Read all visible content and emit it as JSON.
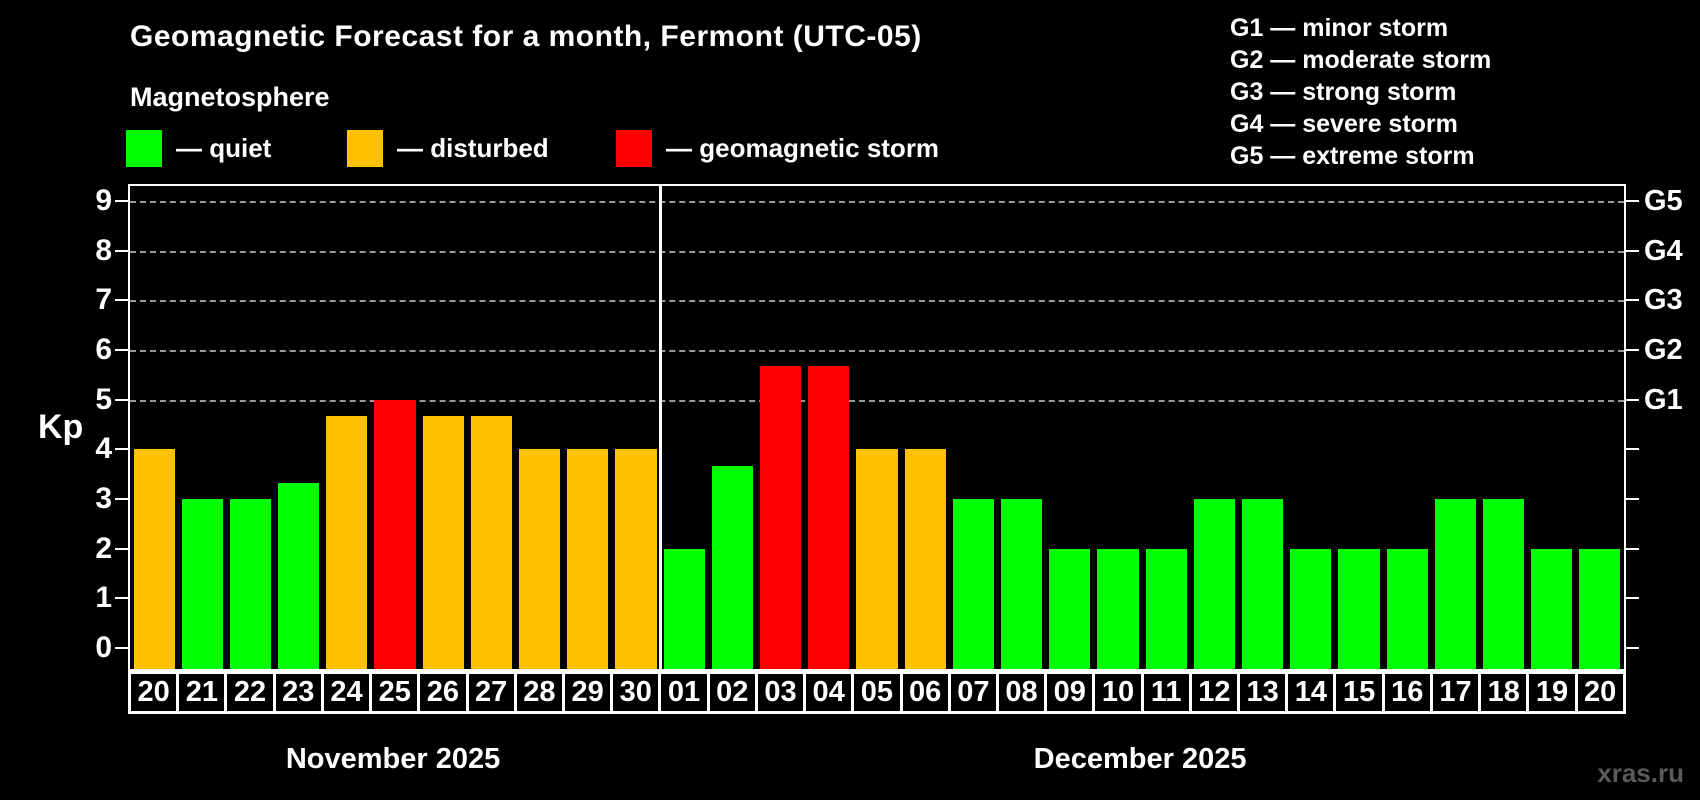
{
  "title": "Geomagnetic Forecast for a month, Fermont (UTC-05)",
  "subtitle": "Magnetosphere",
  "legend": {
    "items": [
      {
        "key": "quiet",
        "label": "— quiet",
        "color": "#00ff00"
      },
      {
        "key": "disturbed",
        "label": "— disturbed",
        "color": "#ffc100"
      },
      {
        "key": "storm",
        "label": "— geomagnetic storm",
        "color": "#ff0000"
      }
    ]
  },
  "storm_scale_legend": [
    "G1 — minor storm",
    "G2 — moderate storm",
    "G3 — strong storm",
    "G4 — severe storm",
    "G5 — extreme storm"
  ],
  "y_axis": {
    "label": "Kp",
    "ticks": [
      0,
      1,
      2,
      3,
      4,
      5,
      6,
      7,
      8,
      9
    ]
  },
  "right_axis": {
    "labels": [
      {
        "kp": 5,
        "text": "G1"
      },
      {
        "kp": 6,
        "text": "G2"
      },
      {
        "kp": 7,
        "text": "G3"
      },
      {
        "kp": 8,
        "text": "G4"
      },
      {
        "kp": 9,
        "text": "G5"
      }
    ]
  },
  "watermark": "xras.ru",
  "chart_data": {
    "type": "bar",
    "title": "Geomagnetic Forecast for a month, Fermont (UTC-05)",
    "ylabel": "Kp",
    "ylim": [
      0,
      9.4
    ],
    "grid": true,
    "gridlines_kp": [
      5,
      6,
      7,
      8,
      9
    ],
    "legend_position": "top",
    "colors": {
      "quiet": "#00ff00",
      "disturbed": "#ffc100",
      "storm": "#ff0000",
      "grid": "#999999",
      "axis": "#ffffff"
    },
    "months": [
      {
        "label": "November 2025",
        "days": [
          "20",
          "21",
          "22",
          "23",
          "24",
          "25",
          "26",
          "27",
          "28",
          "29",
          "30"
        ],
        "values": [
          4,
          3,
          3,
          3.33,
          4.67,
          5,
          4.67,
          4.67,
          4,
          4,
          4
        ],
        "status": [
          "disturbed",
          "quiet",
          "quiet",
          "quiet",
          "disturbed",
          "storm",
          "disturbed",
          "disturbed",
          "disturbed",
          "disturbed",
          "disturbed"
        ]
      },
      {
        "label": "December 2025",
        "days": [
          "01",
          "02",
          "03",
          "04",
          "05",
          "06",
          "07",
          "08",
          "09",
          "10",
          "11",
          "12",
          "13",
          "14",
          "15",
          "16",
          "17",
          "18",
          "19",
          "20"
        ],
        "values": [
          2,
          3.67,
          5.67,
          5.67,
          4,
          4,
          3,
          3,
          2,
          2,
          2,
          3,
          3,
          2,
          2,
          2,
          3,
          3,
          2,
          2
        ],
        "status": [
          "quiet",
          "quiet",
          "storm",
          "storm",
          "disturbed",
          "disturbed",
          "quiet",
          "quiet",
          "quiet",
          "quiet",
          "quiet",
          "quiet",
          "quiet",
          "quiet",
          "quiet",
          "quiet",
          "quiet",
          "quiet",
          "quiet",
          "quiet"
        ]
      }
    ]
  }
}
